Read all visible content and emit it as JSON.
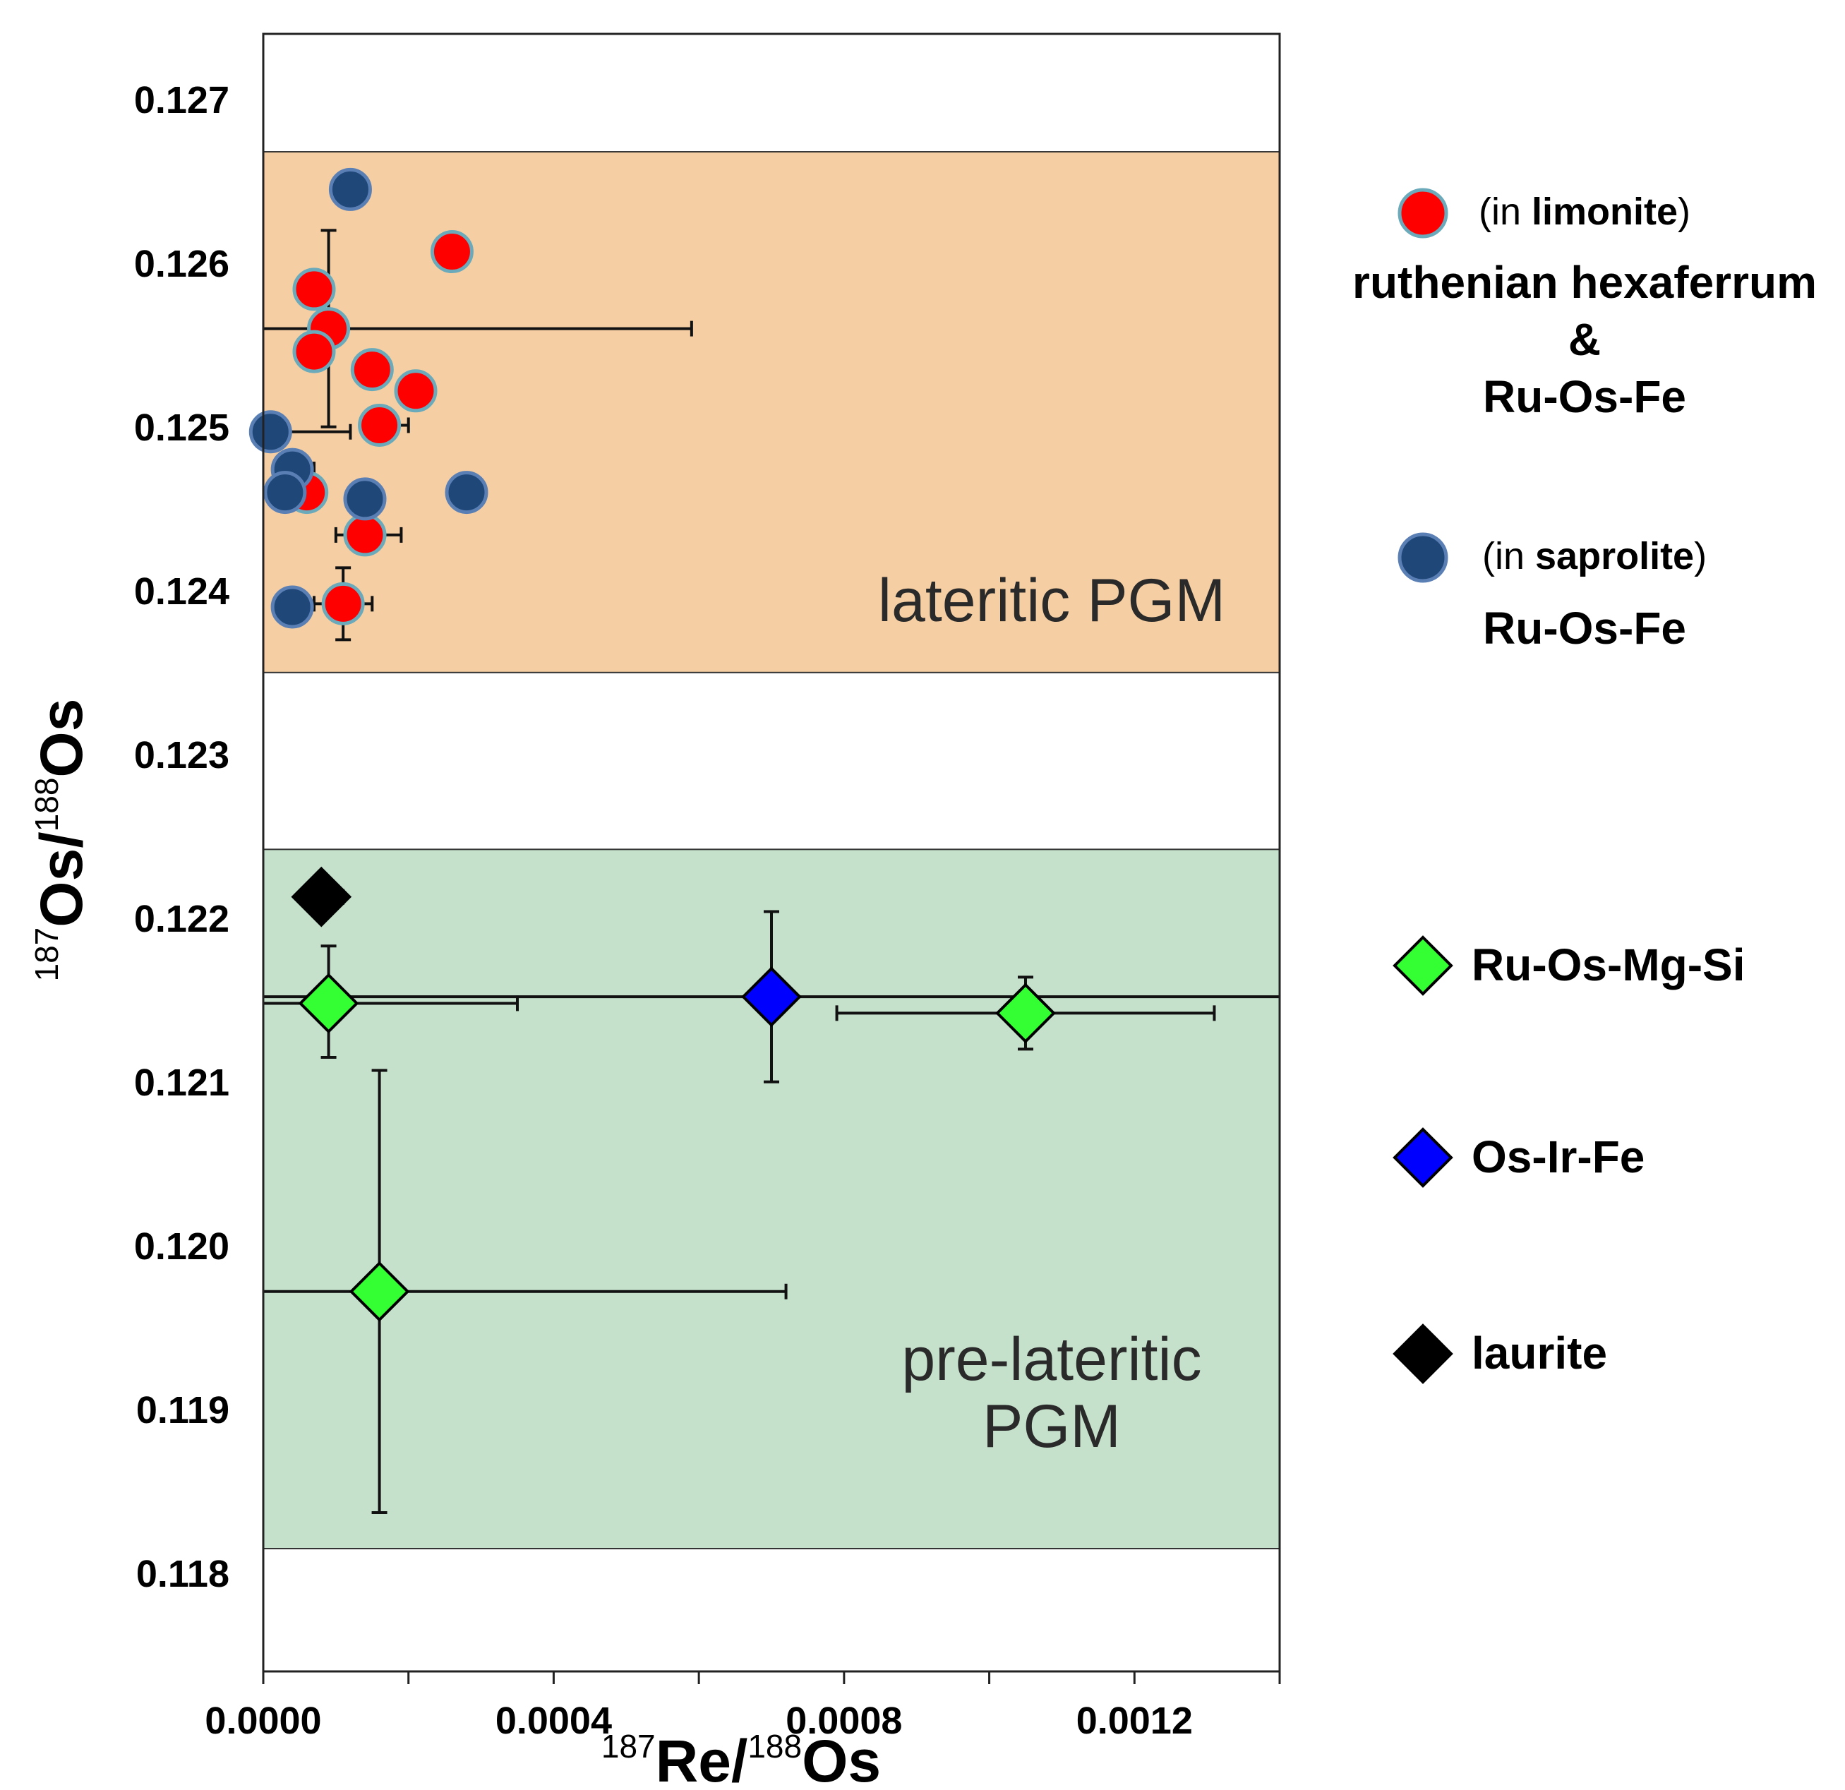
{
  "chart_data": {
    "type": "scatter",
    "xlabel": {
      "sup1": "187",
      "main1": "Re/",
      "sup2": "188",
      "main2": "Os"
    },
    "ylabel": {
      "sup1": "187",
      "main1": "Os/",
      "sup2": "188",
      "main2": "Os"
    },
    "xlim": [
      0.0,
      0.0014
    ],
    "ylim": [
      0.1174,
      0.1274
    ],
    "x_ticks": [
      0.0,
      0.0004,
      0.0008,
      0.0012
    ],
    "x_tick_labels": [
      "0.0000",
      "0.0004",
      "0.0008",
      "0.0012"
    ],
    "x_minor_ticks": [
      0.0002,
      0.0006,
      0.001,
      0.0014
    ],
    "y_ticks": [
      0.118,
      0.119,
      0.12,
      0.121,
      0.122,
      0.123,
      0.124,
      0.125,
      0.126,
      0.127
    ],
    "y_tick_labels": [
      "0.118",
      "0.119",
      "0.120",
      "0.121",
      "0.122",
      "0.123",
      "0.124",
      "0.125",
      "0.126",
      "0.127"
    ],
    "bands": [
      {
        "label_lines": [
          "lateritic PGM"
        ],
        "y_range": [
          0.1235,
          0.12668
        ],
        "color": "#f5cfa3"
      },
      {
        "label_lines": [
          "pre-lateritic",
          "PGM"
        ],
        "y_range": [
          0.11815,
          0.12242
        ],
        "color": "#c5e1cc"
      }
    ],
    "series": [
      {
        "name": "ruthenian hexaferrum & Ru-Os-Fe (in limonite)",
        "marker": "circle",
        "fill": "#ff0000",
        "edge": "#6aaabb",
        "points": [
          {
            "x": 0.00026,
            "y": 0.12607
          },
          {
            "x": 7e-05,
            "y": 0.12584
          },
          {
            "x": 9e-05,
            "y": 0.1256,
            "xerr": [
              9e-05,
              0.0005
            ],
            "yerr": [
              0.0006,
              0.0006
            ]
          },
          {
            "x": 7e-05,
            "y": 0.12546
          },
          {
            "x": 0.00015,
            "y": 0.12535
          },
          {
            "x": 0.00021,
            "y": 0.12522
          },
          {
            "x": 0.00016,
            "y": 0.12501,
            "xerr": [
              2e-05,
              4e-05
            ]
          },
          {
            "x": 6e-05,
            "y": 0.1246
          },
          {
            "x": 0.00014,
            "y": 0.12434,
            "xerr": [
              4e-05,
              5e-05
            ]
          },
          {
            "x": 0.00011,
            "y": 0.12392,
            "xerr": [
              4e-05,
              4e-05
            ],
            "yerr": [
              0.00022,
              0.00022
            ]
          }
        ]
      },
      {
        "name": "Ru-Os-Fe (in saprolite)",
        "marker": "circle",
        "fill": "#1f4778",
        "edge": "#5a7fb5",
        "points": [
          {
            "x": 0.00012,
            "y": 0.12645
          },
          {
            "x": 1e-05,
            "y": 0.12497,
            "xerr": [
              1e-05,
              0.00011
            ]
          },
          {
            "x": 4e-05,
            "y": 0.12474,
            "xerr": [
              2e-05,
              3e-05
            ]
          },
          {
            "x": 3e-05,
            "y": 0.1246
          },
          {
            "x": 0.00014,
            "y": 0.12456
          },
          {
            "x": 0.00028,
            "y": 0.1246
          },
          {
            "x": 4e-05,
            "y": 0.1239
          }
        ]
      },
      {
        "name": "Ru-Os-Mg-Si",
        "marker": "diamond",
        "fill": "#33ff33",
        "edge": "#000000",
        "points": [
          {
            "x": 9e-05,
            "y": 0.12148,
            "xerr": [
              9e-05,
              0.00026
            ],
            "yerr": [
              0.00033,
              0.00035
            ]
          },
          {
            "x": 0.00105,
            "y": 0.12142,
            "xerr": [
              0.00026,
              0.00026
            ],
            "yerr": [
              0.00022,
              0.00022
            ]
          },
          {
            "x": 0.00016,
            "y": 0.11972,
            "xerr": [
              0.00016,
              0.00056
            ],
            "yerr": [
              0.00135,
              0.00135
            ]
          }
        ]
      },
      {
        "name": "Os-Ir-Fe",
        "marker": "diamond",
        "fill": "#0000ff",
        "edge": "#000000",
        "points": [
          {
            "x": 0.0007,
            "y": 0.12152,
            "xerr": [
              0.0007,
              0.0007
            ],
            "yerr": [
              0.00052,
              0.00052
            ]
          }
        ]
      },
      {
        "name": "laurite",
        "marker": "diamond",
        "fill": "#000000",
        "edge": "#000000",
        "points": [
          {
            "x": 8e-05,
            "y": 0.12213,
            "xerr": [
              2e-05,
              3e-05
            ]
          }
        ]
      }
    ],
    "legend": [
      {
        "series": 0,
        "lines": [
          {
            "pre": "(in ",
            "bold": "limonite",
            "post": ")"
          }
        ],
        "titles": [
          "ruthenian hexaferrum",
          "&",
          "Ru-Os-Fe"
        ]
      },
      {
        "series": 1,
        "lines": [
          {
            "pre": "(in ",
            "bold": "saprolite",
            "post": ")"
          }
        ],
        "titles": [
          "Ru-Os-Fe"
        ]
      },
      {
        "series": 2,
        "titles": [
          "Ru-Os-Mg-Si"
        ]
      },
      {
        "series": 3,
        "titles": [
          "Os-Ir-Fe"
        ]
      },
      {
        "series": 4,
        "titles": [
          "laurite"
        ]
      }
    ]
  }
}
